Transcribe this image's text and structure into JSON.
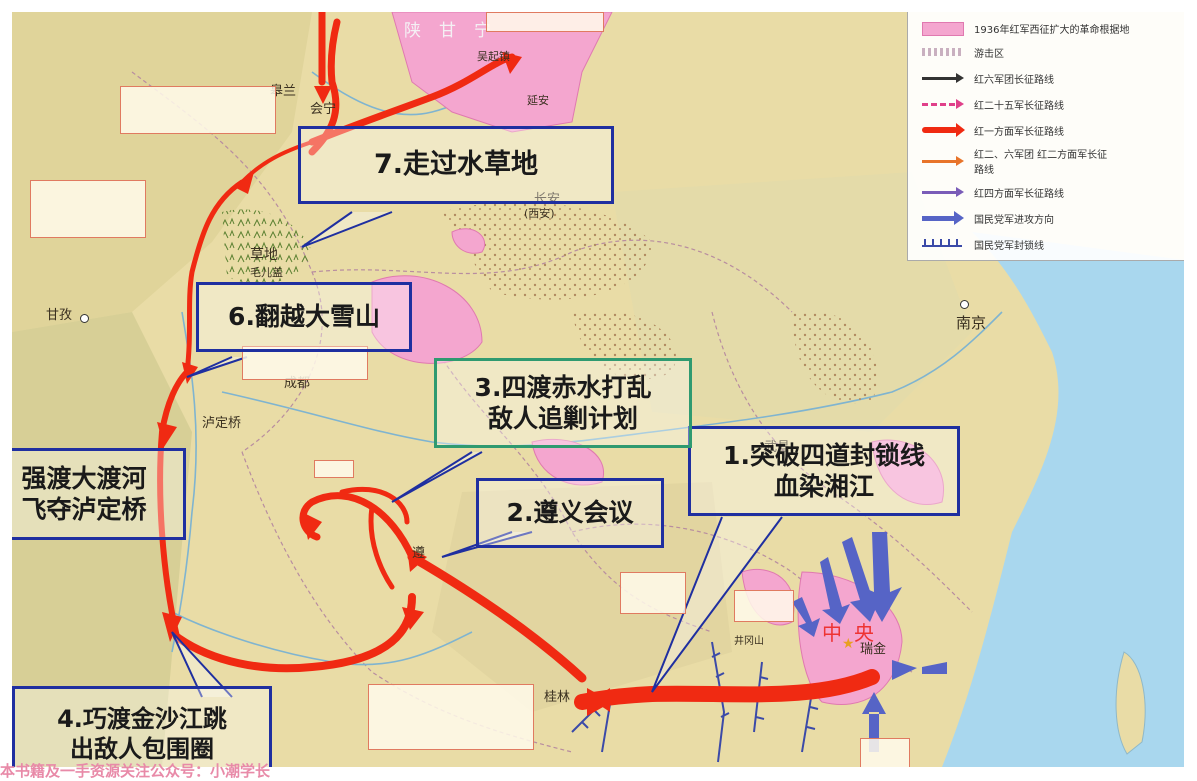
{
  "callouts": {
    "c1": [
      "1.突破四道封锁线",
      "血染湘江"
    ],
    "c2": [
      "2.遵义会议"
    ],
    "c3": [
      "3.四渡赤水打乱",
      "敌人追剿计划"
    ],
    "c4": [
      "4.巧渡金沙江跳",
      "出敌人包围圈"
    ],
    "c5": [
      "强渡大渡河",
      "飞夺泸定桥"
    ],
    "c6": [
      "6.翻越大雪山"
    ],
    "c7": [
      "7.走过水草地"
    ]
  },
  "places": {
    "nanjing": "南京",
    "chengdu": "成都",
    "luding": "泸定桥",
    "ganzi": "甘孜",
    "huining": "会宁",
    "yanan": "延安",
    "wuqi": "吴起镇",
    "changan": "长安",
    "xian": "(西安)",
    "lanzhou": "皋兰",
    "wuchang": "武昌",
    "guilin": "桂林",
    "ruijin": "瑞金",
    "zunyi": "遵",
    "maoergai": "毛儿盖",
    "caodi": "草地",
    "zhongyang": "中央",
    "shaanganning": "陕甘宁",
    "jinggang": "井冈山"
  },
  "legend": {
    "title": "1936年红军西征扩大的革命根据地",
    "items": [
      "游击区",
      "红六军团长征路线",
      "红二十五军长征路线",
      "红一方面军长征路线",
      "红二、六军团 红二方面军长征路线",
      "红四方面军长征路线",
      "国民党军进攻方向",
      "国民党军封锁线"
    ]
  },
  "watermark": "本书籍及一手资源关注公众号：小潮学长",
  "colors": {
    "route_red": "#f02a12",
    "callout_border": "#1f2fa0",
    "base_pink": "#f4a6cf",
    "sea": "#a9d7ee",
    "land": "#e9dca6",
    "kmt_blue": "#5664c6"
  }
}
